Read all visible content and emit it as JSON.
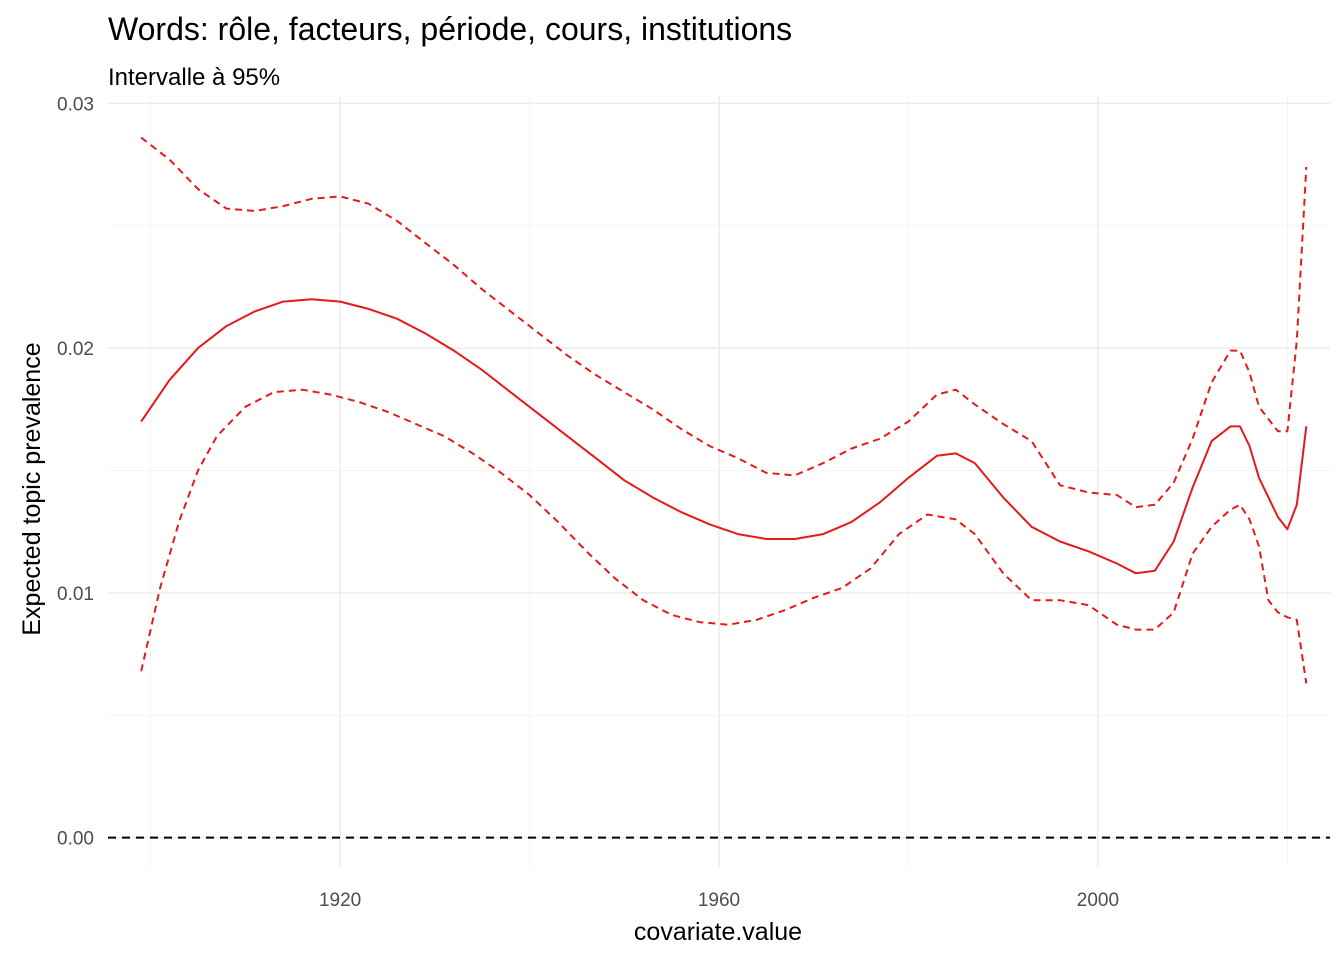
{
  "chart_data": {
    "type": "line",
    "title": "Words: rôle, facteurs, période, cours, institutions",
    "subtitle": "Intervalle à 95%",
    "xlabel": "covariate.value",
    "ylabel": "Expected topic prevalence",
    "xlim": [
      1895.5,
      2024.5
    ],
    "ylim": [
      -0.0012,
      0.0303
    ],
    "x_major_ticks": [
      1920,
      1960,
      2000
    ],
    "x_tick_labels": [
      "1920",
      "1960",
      "2000"
    ],
    "x_minor_ticks": [
      1900,
      1940,
      1980,
      2020
    ],
    "y_major_ticks": [
      0.0,
      0.01,
      0.02,
      0.03
    ],
    "y_tick_labels": [
      "0.00",
      "0.01",
      "0.02",
      "0.03"
    ],
    "y_minor_ticks": [
      0.005,
      0.015,
      0.025
    ],
    "grid": true,
    "reference_line": {
      "y": 0.0,
      "style": "dashed",
      "color": "#000000"
    },
    "series": [
      {
        "style": "solid",
        "color": "#e41a1c",
        "x": [
          1899,
          1902,
          1905,
          1908,
          1911,
          1914,
          1917,
          1920,
          1923,
          1926,
          1929,
          1932,
          1935,
          1938,
          1941,
          1944,
          1947,
          1950,
          1953,
          1956,
          1959,
          1962,
          1965,
          1968,
          1971,
          1974,
          1977,
          1980,
          1983,
          1985,
          1987,
          1990,
          1993,
          1996,
          1999,
          2002,
          2004,
          2006,
          2008,
          2010,
          2012,
          2014,
          2015,
          2016,
          2017,
          2019,
          2020,
          2021,
          2022
        ],
        "y": [
          0.017,
          0.0187,
          0.02,
          0.0209,
          0.0215,
          0.0219,
          0.022,
          0.0219,
          0.0216,
          0.0212,
          0.0206,
          0.0199,
          0.0191,
          0.0182,
          0.0173,
          0.0164,
          0.0155,
          0.0146,
          0.0139,
          0.0133,
          0.0128,
          0.0124,
          0.0122,
          0.0122,
          0.0124,
          0.0129,
          0.0137,
          0.0147,
          0.0156,
          0.0157,
          0.0153,
          0.0139,
          0.0127,
          0.0121,
          0.0117,
          0.0112,
          0.0108,
          0.0109,
          0.0121,
          0.0143,
          0.0162,
          0.0168,
          0.0168,
          0.016,
          0.0147,
          0.0131,
          0.0126,
          0.0136,
          0.0168
        ]
      },
      {
        "style": "dashed",
        "color": "#e41a1c",
        "x": [
          1899,
          1902,
          1905,
          1908,
          1911,
          1914,
          1917,
          1920,
          1923,
          1926,
          1929,
          1932,
          1935,
          1938,
          1941,
          1944,
          1947,
          1950,
          1953,
          1956,
          1959,
          1962,
          1965,
          1968,
          1971,
          1974,
          1977,
          1980,
          1983,
          1985,
          1987,
          1990,
          1993,
          1996,
          1999,
          2002,
          2004,
          2006,
          2008,
          2010,
          2012,
          2014,
          2015,
          2016,
          2017,
          2019,
          2020,
          2021,
          2022
        ],
        "y": [
          0.0286,
          0.0277,
          0.0265,
          0.0257,
          0.0256,
          0.0258,
          0.0261,
          0.0262,
          0.0259,
          0.0252,
          0.0243,
          0.0234,
          0.0224,
          0.0215,
          0.0206,
          0.0197,
          0.0189,
          0.0182,
          0.0175,
          0.0167,
          0.016,
          0.0155,
          0.0149,
          0.0148,
          0.0153,
          0.0159,
          0.0163,
          0.017,
          0.0181,
          0.0183,
          0.0177,
          0.0169,
          0.0162,
          0.0144,
          0.0141,
          0.014,
          0.0135,
          0.0136,
          0.0145,
          0.0163,
          0.0186,
          0.0199,
          0.0199,
          0.019,
          0.0176,
          0.0166,
          0.0166,
          0.0203,
          0.0274
        ]
      },
      {
        "style": "dashed",
        "color": "#e41a1c",
        "x": [
          1899,
          1901,
          1903,
          1905,
          1907,
          1910,
          1913,
          1916,
          1919,
          1922,
          1925,
          1928,
          1931,
          1934,
          1937,
          1940,
          1943,
          1946,
          1949,
          1952,
          1955,
          1958,
          1961,
          1964,
          1967,
          1970,
          1973,
          1976,
          1979,
          1982,
          1985,
          1987,
          1990,
          1993,
          1996,
          1999,
          2002,
          2004,
          2006,
          2008,
          2010,
          2012,
          2014,
          2015,
          2016,
          2017,
          2018,
          2019,
          2020,
          2021,
          2022
        ],
        "y": [
          0.0068,
          0.0102,
          0.0129,
          0.015,
          0.0164,
          0.0176,
          0.0182,
          0.0183,
          0.0181,
          0.0178,
          0.0174,
          0.0169,
          0.0164,
          0.0157,
          0.0149,
          0.014,
          0.0129,
          0.0117,
          0.0106,
          0.0097,
          0.0091,
          0.0088,
          0.0087,
          0.0089,
          0.0093,
          0.0098,
          0.0102,
          0.011,
          0.0124,
          0.0132,
          0.013,
          0.0124,
          0.0108,
          0.0097,
          0.0097,
          0.0095,
          0.0087,
          0.0085,
          0.0085,
          0.0092,
          0.0116,
          0.0127,
          0.0134,
          0.0136,
          0.013,
          0.0119,
          0.0097,
          0.0092,
          0.009,
          0.0089,
          0.0063
        ]
      }
    ]
  }
}
